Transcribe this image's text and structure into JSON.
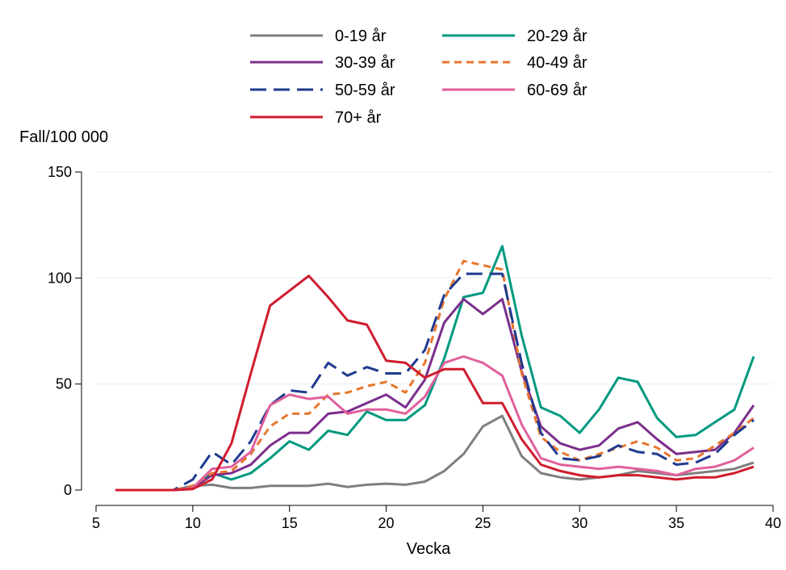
{
  "chart_data": {
    "type": "line",
    "title": "",
    "xlabel": "Vecka",
    "ylabel": "Fall/100 000",
    "xlim": [
      5,
      40
    ],
    "ylim": [
      0,
      150
    ],
    "xticks": [
      5,
      10,
      15,
      20,
      25,
      30,
      35,
      40
    ],
    "yticks": [
      0,
      50,
      100,
      150
    ],
    "grid": true,
    "legend_position": "top",
    "x": [
      6,
      7,
      8,
      9,
      10,
      11,
      12,
      13,
      14,
      15,
      16,
      17,
      18,
      19,
      20,
      21,
      22,
      23,
      24,
      25,
      26,
      27,
      28,
      29,
      30,
      31,
      32,
      33,
      34,
      35,
      36,
      37,
      38,
      39
    ],
    "series": [
      {
        "name": "0-19 år",
        "color": "#7f7f7f",
        "dash": "solid",
        "values": [
          0,
          0,
          0,
          0,
          2,
          2.5,
          1,
          1,
          2,
          2,
          2,
          3,
          1.5,
          2.5,
          3,
          2.5,
          4,
          9,
          17,
          30,
          35,
          16,
          8,
          6,
          5,
          6,
          7,
          9,
          8,
          7,
          8,
          9,
          10,
          13
        ]
      },
      {
        "name": "20-29 år",
        "color": "#00997f",
        "dash": "solid",
        "values": [
          0,
          0,
          0,
          0,
          1,
          8,
          5,
          8,
          15,
          23,
          19,
          28,
          26,
          37,
          33,
          33,
          40,
          62,
          91,
          93,
          115,
          73,
          39,
          35,
          27,
          38,
          53,
          51,
          34,
          25,
          26,
          32,
          38,
          63
        ]
      },
      {
        "name": "30-39 år",
        "color": "#7b2f8c",
        "dash": "solid",
        "values": [
          0,
          0,
          0,
          0,
          1,
          7,
          8,
          12,
          21,
          27,
          27,
          36,
          37,
          41,
          45,
          39,
          52,
          79,
          90,
          83,
          90,
          56,
          30,
          22,
          19,
          21,
          29,
          32,
          24,
          17,
          18,
          19,
          27,
          40
        ]
      },
      {
        "name": "40-49 år",
        "color": "#e8762d",
        "dash": "dash",
        "values": [
          0,
          0,
          0,
          0,
          2,
          8,
          9,
          17,
          30,
          36,
          36,
          45,
          46,
          49,
          51,
          46,
          60,
          90,
          108,
          106,
          104,
          55,
          25,
          18,
          14,
          17,
          20,
          23,
          20,
          14,
          15,
          21,
          27,
          34
        ]
      },
      {
        "name": "50-59 år",
        "color": "#1f3a8f",
        "dash": "longdash",
        "values": [
          0,
          0,
          0,
          0,
          5,
          18,
          12,
          23,
          40,
          47,
          46,
          60,
          54,
          58,
          55,
          55,
          66,
          92,
          102,
          102,
          102,
          60,
          27,
          15,
          14,
          16,
          21,
          18,
          17,
          12,
          13,
          17,
          26,
          33
        ]
      },
      {
        "name": "60-69 år",
        "color": "#e0609c",
        "dash": "solid",
        "values": [
          0,
          0,
          0,
          0,
          1,
          10,
          11,
          18,
          40,
          45,
          43,
          44,
          36,
          38,
          38,
          36,
          44,
          60,
          63,
          60,
          54,
          31,
          15,
          12,
          11,
          10,
          11,
          10,
          9,
          7,
          10,
          11,
          14,
          20
        ]
      },
      {
        "name": "70+ år",
        "color": "#d01c2e",
        "dash": "solid",
        "values": [
          0,
          0,
          0,
          0,
          0.5,
          5,
          22,
          55,
          87,
          94,
          101,
          91,
          80,
          78,
          61,
          60,
          53,
          57,
          57,
          41,
          41,
          24,
          12,
          9,
          7,
          6,
          7,
          7,
          6,
          5,
          6,
          6,
          8,
          11
        ]
      }
    ]
  }
}
